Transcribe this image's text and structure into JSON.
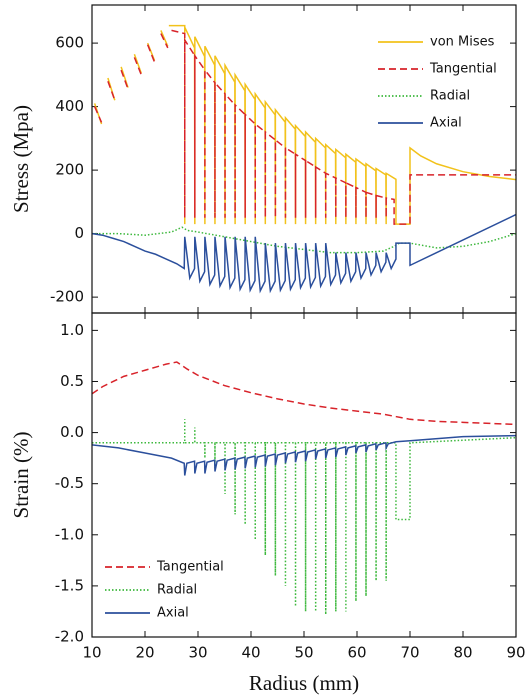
{
  "chart_data": [
    {
      "type": "line",
      "ylabel": "Stress (Mpa)",
      "xlim": [
        10,
        90
      ],
      "ylim": [
        -250,
        720
      ],
      "yticks": [
        -200,
        0,
        200,
        400,
        600
      ],
      "grid": false,
      "legend": "upper right",
      "series": [
        {
          "name": "von Mises",
          "color": "#f2c21b",
          "dash": "solid",
          "x": [
            10.5,
            11.8,
            null,
            13,
            14.3,
            null,
            15.5,
            16.8,
            null,
            18,
            19.3,
            null,
            20.5,
            21.8,
            null,
            23,
            24.3,
            null,
            24.5,
            27.5,
            27.5,
            27.5,
            29.35,
            29.4,
            29.4,
            31.25,
            31.3,
            31.3,
            33.15,
            33.2,
            33.2,
            35.05,
            35.1,
            35.1,
            36.95,
            37,
            37,
            38.85,
            38.9,
            38.9,
            40.75,
            40.8,
            40.8,
            42.65,
            42.7,
            42.7,
            44.55,
            44.6,
            44.6,
            46.45,
            46.5,
            46.5,
            48.35,
            48.4,
            48.4,
            50.25,
            50.3,
            50.3,
            52.15,
            52.2,
            52.2,
            54.05,
            54.1,
            54.1,
            55.95,
            56,
            56,
            57.85,
            57.9,
            57.9,
            59.75,
            59.8,
            59.8,
            61.65,
            61.7,
            61.7,
            63.55,
            63.6,
            63.6,
            65.45,
            65.5,
            65.5,
            67.35,
            67.35,
            70,
            70,
            72,
            75,
            80,
            85,
            90
          ],
          "values": [
            410,
            345,
            null,
            490,
            420,
            null,
            525,
            460,
            null,
            565,
            505,
            null,
            600,
            545,
            null,
            640,
            590,
            null,
            655,
            655,
            30,
            650,
            585,
            30,
            620,
            558,
            30,
            590,
            531,
            30,
            560,
            504,
            30,
            530,
            477,
            30,
            500,
            450,
            30,
            470,
            423,
            30,
            440,
            396,
            30,
            415,
            374,
            30,
            390,
            351,
            30,
            365,
            329,
            30,
            340,
            306,
            30,
            320,
            288,
            30,
            300,
            270,
            30,
            280,
            252,
            30,
            265,
            239,
            30,
            250,
            225,
            30,
            235,
            212,
            30,
            220,
            198,
            30,
            205,
            185,
            30,
            190,
            171,
            30,
            30,
            270,
            245,
            220,
            195,
            180,
            170
          ]
        },
        {
          "name": "Tangential",
          "color": "#d8232a",
          "dash": "dashed",
          "x": [
            10.5,
            11.8,
            null,
            13,
            14.3,
            null,
            15.5,
            16.8,
            null,
            18,
            19.3,
            null,
            20.5,
            21.8,
            null,
            23,
            24.3,
            null,
            25,
            27.5,
            27.5,
            27.5,
            29.4,
            29.4,
            29.4,
            31.3,
            31.3,
            31.3,
            33.2,
            33.2,
            33.2,
            35.1,
            35.1,
            35.1,
            37,
            37,
            37,
            38.9,
            38.9,
            38.9,
            40.8,
            40.8,
            40.8,
            42.7,
            42.7,
            42.7,
            44.6,
            44.6,
            44.6,
            46.5,
            46.5,
            46.5,
            48.4,
            48.4,
            48.4,
            50.3,
            50.3,
            50.3,
            52.2,
            52.2,
            52.2,
            54.1,
            54.1,
            54.1,
            56,
            56,
            56,
            57.9,
            57.9,
            57.9,
            59.8,
            59.8,
            59.8,
            61.7,
            61.7,
            61.7,
            63.6,
            63.6,
            63.6,
            65.5,
            65.5,
            65.5,
            67,
            67,
            70,
            70,
            90
          ],
          "values": [
            400,
            350,
            null,
            480,
            420,
            null,
            515,
            455,
            null,
            555,
            500,
            null,
            595,
            540,
            null,
            630,
            585,
            null,
            640,
            630,
            50,
            610,
            560,
            50,
            560,
            515,
            50,
            515,
            475,
            50,
            475,
            440,
            50,
            440,
            405,
            50,
            405,
            375,
            50,
            375,
            345,
            50,
            345,
            320,
            50,
            320,
            295,
            50,
            295,
            270,
            50,
            270,
            250,
            50,
            250,
            230,
            50,
            230,
            210,
            50,
            210,
            190,
            50,
            190,
            175,
            50,
            175,
            160,
            50,
            160,
            145,
            50,
            145,
            130,
            50,
            130,
            120,
            50,
            120,
            112,
            50,
            112,
            108,
            30,
            30,
            185,
            185
          ]
        },
        {
          "name": "Radial",
          "color": "#3db83d",
          "dash": "dotted",
          "x": [
            10,
            15,
            20,
            25,
            27,
            28,
            30,
            35,
            40,
            45,
            50,
            55,
            60,
            65,
            67,
            68,
            70,
            75,
            80,
            85,
            90
          ],
          "values": [
            0,
            0,
            -5,
            5,
            20,
            10,
            5,
            -10,
            -25,
            -40,
            -50,
            -60,
            -60,
            -55,
            -40,
            -30,
            -30,
            -45,
            -40,
            -25,
            0
          ]
        },
        {
          "name": "Axial",
          "color": "#2b4f9c",
          "dash": "solid",
          "x": [
            10,
            12,
            14,
            16,
            18,
            20,
            22,
            24,
            26,
            27.4,
            27.5,
            28.45,
            29.35,
            29.4,
            30.35,
            31.25,
            31.3,
            32.25,
            33.15,
            33.2,
            34.15,
            35.05,
            35.1,
            36.05,
            36.95,
            37,
            37.95,
            38.85,
            38.9,
            39.85,
            40.75,
            40.8,
            41.75,
            42.65,
            42.7,
            43.65,
            44.55,
            44.6,
            45.55,
            46.45,
            46.5,
            47.45,
            48.35,
            48.4,
            49.35,
            50.25,
            50.3,
            51.25,
            52.15,
            52.2,
            53.15,
            54.05,
            54.1,
            55.05,
            55.95,
            56,
            56.95,
            57.85,
            57.9,
            58.85,
            59.75,
            59.8,
            60.75,
            61.65,
            61.7,
            62.65,
            63.55,
            63.6,
            64.55,
            65.45,
            65.5,
            66.45,
            67.35,
            67.35,
            70,
            70,
            90
          ],
          "values": [
            0,
            -5,
            -15,
            -25,
            -40,
            -55,
            -65,
            -80,
            -95,
            -110,
            -10,
            -140,
            -110,
            -10,
            -150,
            -120,
            -10,
            -160,
            -130,
            -10,
            -165,
            -135,
            -10,
            -170,
            -140,
            -10,
            -175,
            -145,
            -10,
            -178,
            -148,
            -10,
            -180,
            -150,
            -30,
            -180,
            -150,
            -30,
            -178,
            -148,
            -30,
            -175,
            -145,
            -30,
            -170,
            -140,
            -30,
            -168,
            -138,
            -30,
            -165,
            -135,
            -30,
            -160,
            -130,
            -60,
            -155,
            -125,
            -60,
            -150,
            -120,
            -60,
            -140,
            -110,
            -60,
            -130,
            -100,
            -60,
            -120,
            -90,
            -60,
            -110,
            -80,
            -30,
            -30,
            -100,
            60
          ]
        }
      ]
    },
    {
      "type": "line",
      "ylabel": "Strain (%)",
      "xlabel": "Radius (mm)",
      "xlim": [
        10,
        90
      ],
      "ylim": [
        -2.0,
        1.17
      ],
      "xticks": [
        10,
        20,
        30,
        40,
        50,
        60,
        70,
        80,
        90
      ],
      "yticks": [
        {
          "value": -2.0,
          "label": "-2.0"
        },
        {
          "value": -1.5,
          "label": "-1.5"
        },
        {
          "value": -1.0,
          "label": "-1.0"
        },
        {
          "value": -0.5,
          "label": "-0.5"
        },
        {
          "value": 0.0,
          "label": "0.0"
        },
        {
          "value": 0.5,
          "label": "0.5"
        },
        {
          "value": 1.0,
          "label": "1.0"
        }
      ],
      "grid": false,
      "legend": "lower left",
      "series": [
        {
          "name": "Tangential",
          "color": "#d8232a",
          "dash": "dashed",
          "x": [
            10,
            12,
            14,
            16,
            18,
            20,
            22,
            24,
            26,
            28,
            30,
            35,
            40,
            45,
            50,
            55,
            60,
            65,
            70,
            75,
            80,
            85,
            90
          ],
          "values": [
            0.38,
            0.45,
            0.5,
            0.55,
            0.58,
            0.61,
            0.64,
            0.67,
            0.69,
            0.62,
            0.56,
            0.46,
            0.39,
            0.33,
            0.28,
            0.24,
            0.21,
            0.18,
            0.13,
            0.11,
            0.1,
            0.09,
            0.08
          ]
        },
        {
          "name": "Radial",
          "color": "#3db83d",
          "dash": "dotted",
          "x": [
            10,
            27.5,
            27.5,
            27.5,
            29.4,
            29.4,
            29.4,
            31.3,
            31.3,
            31.3,
            33.2,
            33.2,
            33.2,
            35.1,
            35.1,
            35.1,
            37,
            37,
            37,
            38.9,
            38.9,
            38.9,
            40.8,
            40.8,
            40.8,
            42.7,
            42.7,
            42.7,
            44.6,
            44.6,
            44.6,
            46.5,
            46.5,
            46.5,
            48.4,
            48.4,
            48.4,
            50.3,
            50.3,
            50.3,
            52.2,
            52.2,
            52.2,
            54.1,
            54.1,
            54.1,
            56,
            56,
            56,
            57.9,
            57.9,
            57.9,
            59.8,
            59.8,
            59.8,
            61.7,
            61.7,
            61.7,
            63.6,
            63.6,
            63.6,
            65.5,
            65.5,
            65.5,
            67.35,
            67.35,
            70,
            70,
            90
          ],
          "values": [
            -0.1,
            -0.1,
            0.13,
            -0.1,
            -0.1,
            0.05,
            -0.1,
            -0.1,
            -0.25,
            -0.1,
            -0.1,
            -0.35,
            -0.1,
            -0.1,
            -0.6,
            -0.1,
            -0.1,
            -0.8,
            -0.1,
            -0.1,
            -0.9,
            -0.1,
            -0.1,
            -1.05,
            -0.1,
            -0.1,
            -1.2,
            -0.1,
            -0.1,
            -1.4,
            -0.1,
            -0.1,
            -1.5,
            -0.1,
            -0.1,
            -1.7,
            -0.1,
            -0.1,
            -1.75,
            -0.1,
            -0.1,
            -1.75,
            -0.1,
            -0.1,
            -1.78,
            -0.1,
            -0.1,
            -1.75,
            -0.1,
            -0.1,
            -1.75,
            -0.1,
            -0.1,
            -1.65,
            -0.1,
            -0.1,
            -1.6,
            -0.1,
            -0.1,
            -1.45,
            -0.1,
            -0.1,
            -1.45,
            -0.1,
            -0.1,
            -0.85,
            -0.85,
            -0.1,
            -0.05
          ]
        },
        {
          "name": "Axial",
          "color": "#2b4f9c",
          "dash": "solid",
          "x": [
            10,
            15,
            20,
            25,
            27.4,
            27.5,
            27.9,
            29.35,
            29.4,
            29.8,
            31.25,
            31.3,
            31.7,
            33.15,
            33.2,
            33.6,
            35.05,
            35.1,
            35.5,
            36.95,
            37,
            37.4,
            38.85,
            38.9,
            39.3,
            40.75,
            40.8,
            41.2,
            42.65,
            42.7,
            43.1,
            44.55,
            44.6,
            45,
            46.45,
            46.5,
            46.9,
            48.35,
            48.4,
            48.8,
            50.25,
            50.3,
            50.7,
            52.15,
            52.2,
            52.6,
            54.05,
            54.1,
            54.5,
            55.95,
            56,
            56.4,
            57.85,
            57.9,
            58.3,
            59.75,
            59.8,
            60.2,
            61.65,
            61.7,
            62.1,
            63.55,
            63.6,
            64,
            65.45,
            65.5,
            65.9,
            67.35,
            70,
            80,
            90
          ],
          "values": [
            -0.12,
            -0.15,
            -0.2,
            -0.25,
            -0.3,
            -0.42,
            -0.3,
            -0.28,
            -0.4,
            -0.3,
            -0.28,
            -0.4,
            -0.29,
            -0.27,
            -0.38,
            -0.28,
            -0.26,
            -0.37,
            -0.27,
            -0.25,
            -0.36,
            -0.26,
            -0.24,
            -0.35,
            -0.25,
            -0.23,
            -0.34,
            -0.24,
            -0.22,
            -0.33,
            -0.23,
            -0.21,
            -0.32,
            -0.22,
            -0.2,
            -0.3,
            -0.21,
            -0.19,
            -0.29,
            -0.2,
            -0.18,
            -0.28,
            -0.19,
            -0.17,
            -0.26,
            -0.18,
            -0.16,
            -0.25,
            -0.17,
            -0.15,
            -0.24,
            -0.16,
            -0.14,
            -0.22,
            -0.15,
            -0.13,
            -0.2,
            -0.14,
            -0.12,
            -0.19,
            -0.13,
            -0.11,
            -0.17,
            -0.12,
            -0.1,
            -0.15,
            -0.11,
            -0.09,
            -0.08,
            -0.04,
            -0.03
          ]
        }
      ]
    }
  ]
}
